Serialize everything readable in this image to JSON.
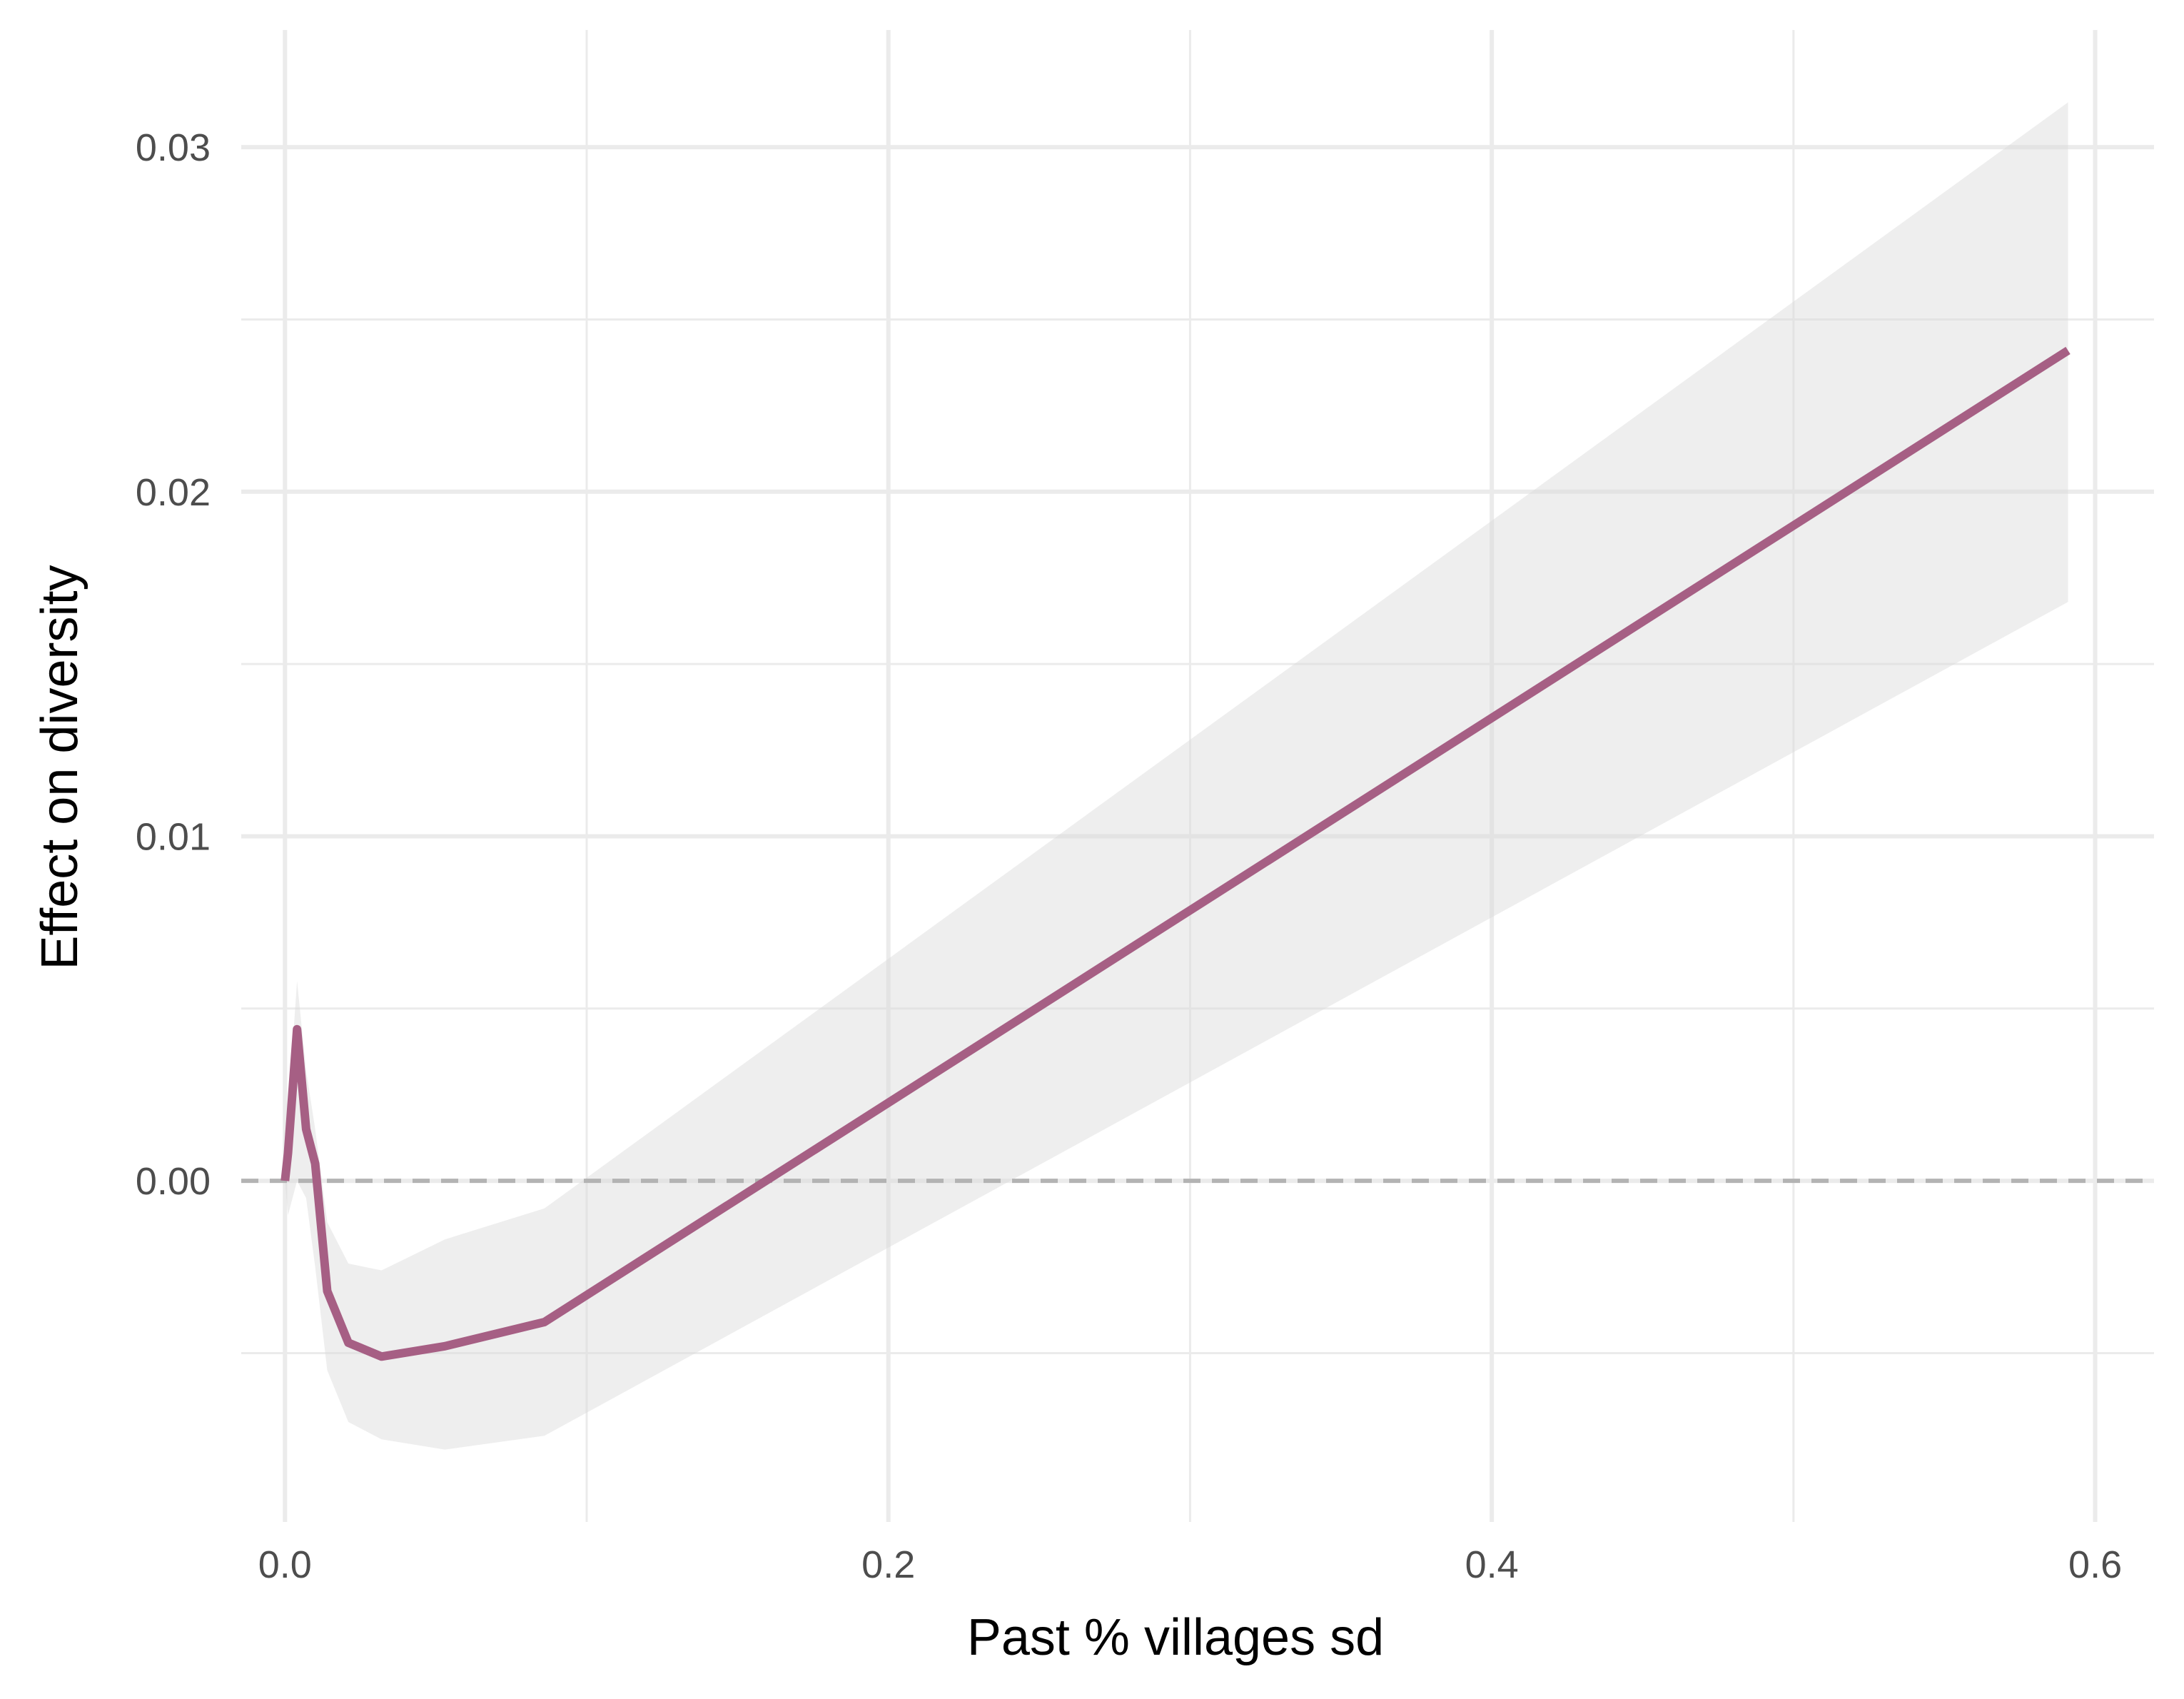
{
  "chart_data": {
    "type": "line",
    "title": "",
    "xlabel": "Past % villages sd",
    "ylabel": "Effect on diversity",
    "xlim": [
      -0.0145,
      0.6195
    ],
    "ylim": [
      -0.0099,
      0.0334
    ],
    "x_major_ticks": [
      0.0,
      0.2,
      0.4,
      0.6
    ],
    "x_tick_labels": [
      "0.0",
      "0.2",
      "0.4",
      "0.6"
    ],
    "x_minor_ticks": [
      0.1,
      0.3,
      0.5
    ],
    "y_major_ticks": [
      0.0,
      0.01,
      0.02,
      0.03
    ],
    "y_tick_labels": [
      "0.00",
      "0.01",
      "0.02",
      "0.03"
    ],
    "y_minor_ticks": [
      -0.005,
      0.005,
      0.015,
      0.025
    ],
    "grid": true,
    "reference_line": {
      "y": 0,
      "style": "dashed",
      "color": "#b3b3b3"
    },
    "series": [
      {
        "name": "effect",
        "color": "#a65f84",
        "x": [
          0.0,
          0.001,
          0.004,
          0.007,
          0.01,
          0.014,
          0.021,
          0.032,
          0.053,
          0.086,
          0.591
        ],
        "y": [
          0.0,
          0.0008,
          0.0044,
          0.0015,
          0.0005,
          -0.0032,
          -0.0047,
          -0.0051,
          -0.0048,
          -0.0041,
          0.0241
        ],
        "lower": [
          0.0,
          -0.001,
          0.0,
          -0.0005,
          -0.0025,
          -0.0055,
          -0.007,
          -0.0075,
          -0.0078,
          -0.0074,
          0.0168
        ],
        "upper": [
          0.0,
          0.002,
          0.0058,
          0.0032,
          0.0015,
          -0.0012,
          -0.0024,
          -0.0026,
          -0.0017,
          -0.0008,
          0.0313
        ],
        "band_color": "#d9d9d9",
        "band_opacity": 0.45
      }
    ]
  }
}
